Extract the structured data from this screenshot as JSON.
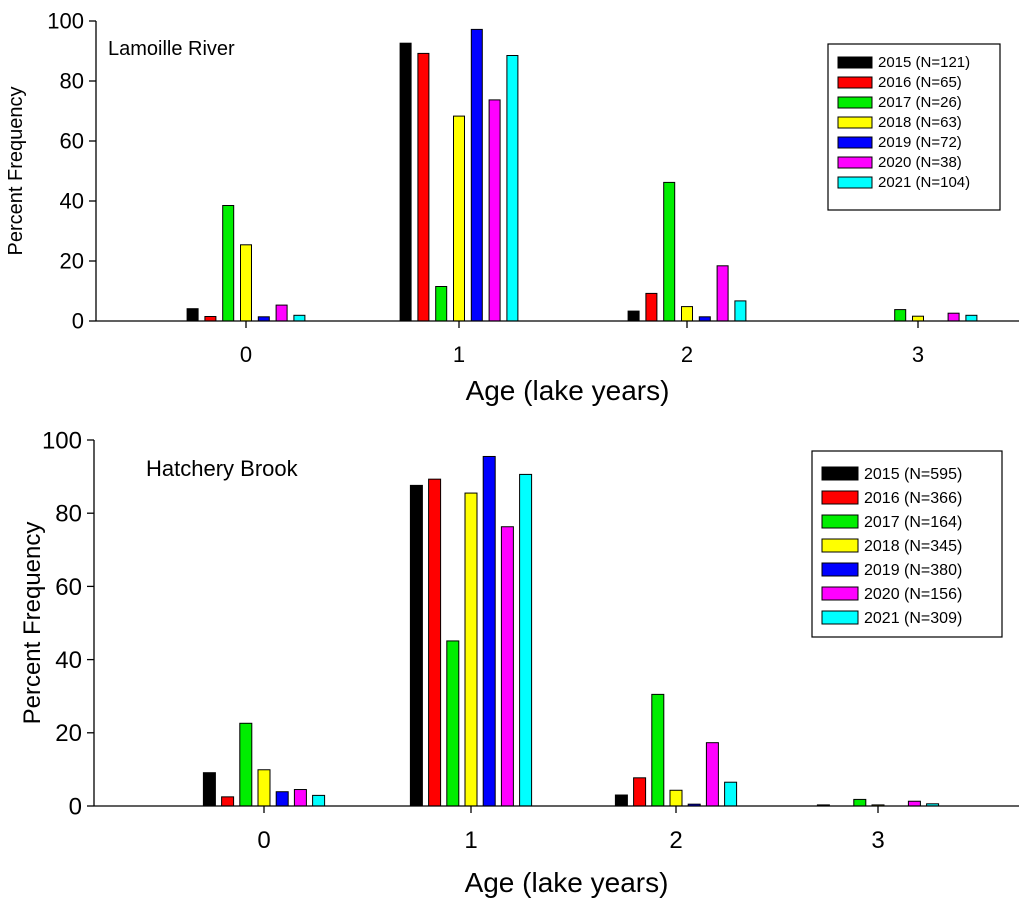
{
  "chart_data": [
    {
      "type": "bar",
      "annotation": "Lamoille River",
      "xlabel": "Age (lake years)",
      "ylabel": "Percent Frequency",
      "ylim": [
        0,
        100
      ],
      "y_ticks": [
        "0",
        "20",
        "40",
        "60",
        "80",
        "100"
      ],
      "categories": [
        "0",
        "1",
        "2",
        "3"
      ],
      "legend_position": "top-right",
      "series": [
        {
          "name": "2015 (N=121)",
          "color": "#000000",
          "values": [
            4.1,
            92.6,
            3.3,
            0
          ]
        },
        {
          "name": "2016 (N=65)",
          "color": "#ff0000",
          "values": [
            1.5,
            89.2,
            9.2,
            0
          ]
        },
        {
          "name": "2017 (N=26)",
          "color": "#00ee00",
          "values": [
            38.5,
            11.5,
            46.2,
            3.8
          ]
        },
        {
          "name": "2018 (N=63)",
          "color": "#ffff00",
          "values": [
            25.4,
            68.3,
            4.8,
            1.6
          ]
        },
        {
          "name": "2019 (N=72)",
          "color": "#0000ff",
          "values": [
            1.4,
            97.2,
            1.4,
            0
          ]
        },
        {
          "name": "2020 (N=38)",
          "color": "#ff00ff",
          "values": [
            5.3,
            73.7,
            18.4,
            2.6
          ]
        },
        {
          "name": "2021 (N=104)",
          "color": "#00ffff",
          "values": [
            1.9,
            88.5,
            6.7,
            1.9
          ]
        }
      ]
    },
    {
      "type": "bar",
      "annotation": "Hatchery Brook",
      "xlabel": "Age (lake years)",
      "ylabel": "Percent Frequency",
      "ylim": [
        0,
        100
      ],
      "y_ticks": [
        "0",
        "20",
        "40",
        "60",
        "80",
        "100"
      ],
      "categories": [
        "0",
        "1",
        "2",
        "3"
      ],
      "legend_position": "top-right",
      "series": [
        {
          "name": "2015 (N=595)",
          "color": "#000000",
          "values": [
            9.1,
            87.6,
            3.0,
            0.3
          ]
        },
        {
          "name": "2016 (N=366)",
          "color": "#ff0000",
          "values": [
            2.5,
            89.3,
            7.7,
            0
          ]
        },
        {
          "name": "2017 (N=164)",
          "color": "#00ee00",
          "values": [
            22.6,
            45.1,
            30.5,
            1.8
          ]
        },
        {
          "name": "2018 (N=345)",
          "color": "#ffff00",
          "values": [
            9.9,
            85.5,
            4.3,
            0.3
          ]
        },
        {
          "name": "2019 (N=380)",
          "color": "#0000ff",
          "values": [
            3.9,
            95.5,
            0.5,
            0
          ]
        },
        {
          "name": "2020 (N=156)",
          "color": "#ff00ff",
          "values": [
            4.5,
            76.3,
            17.3,
            1.3
          ]
        },
        {
          "name": "2021 (N=309)",
          "color": "#00ffff",
          "values": [
            2.9,
            90.6,
            6.5,
            0.6
          ]
        }
      ]
    }
  ]
}
